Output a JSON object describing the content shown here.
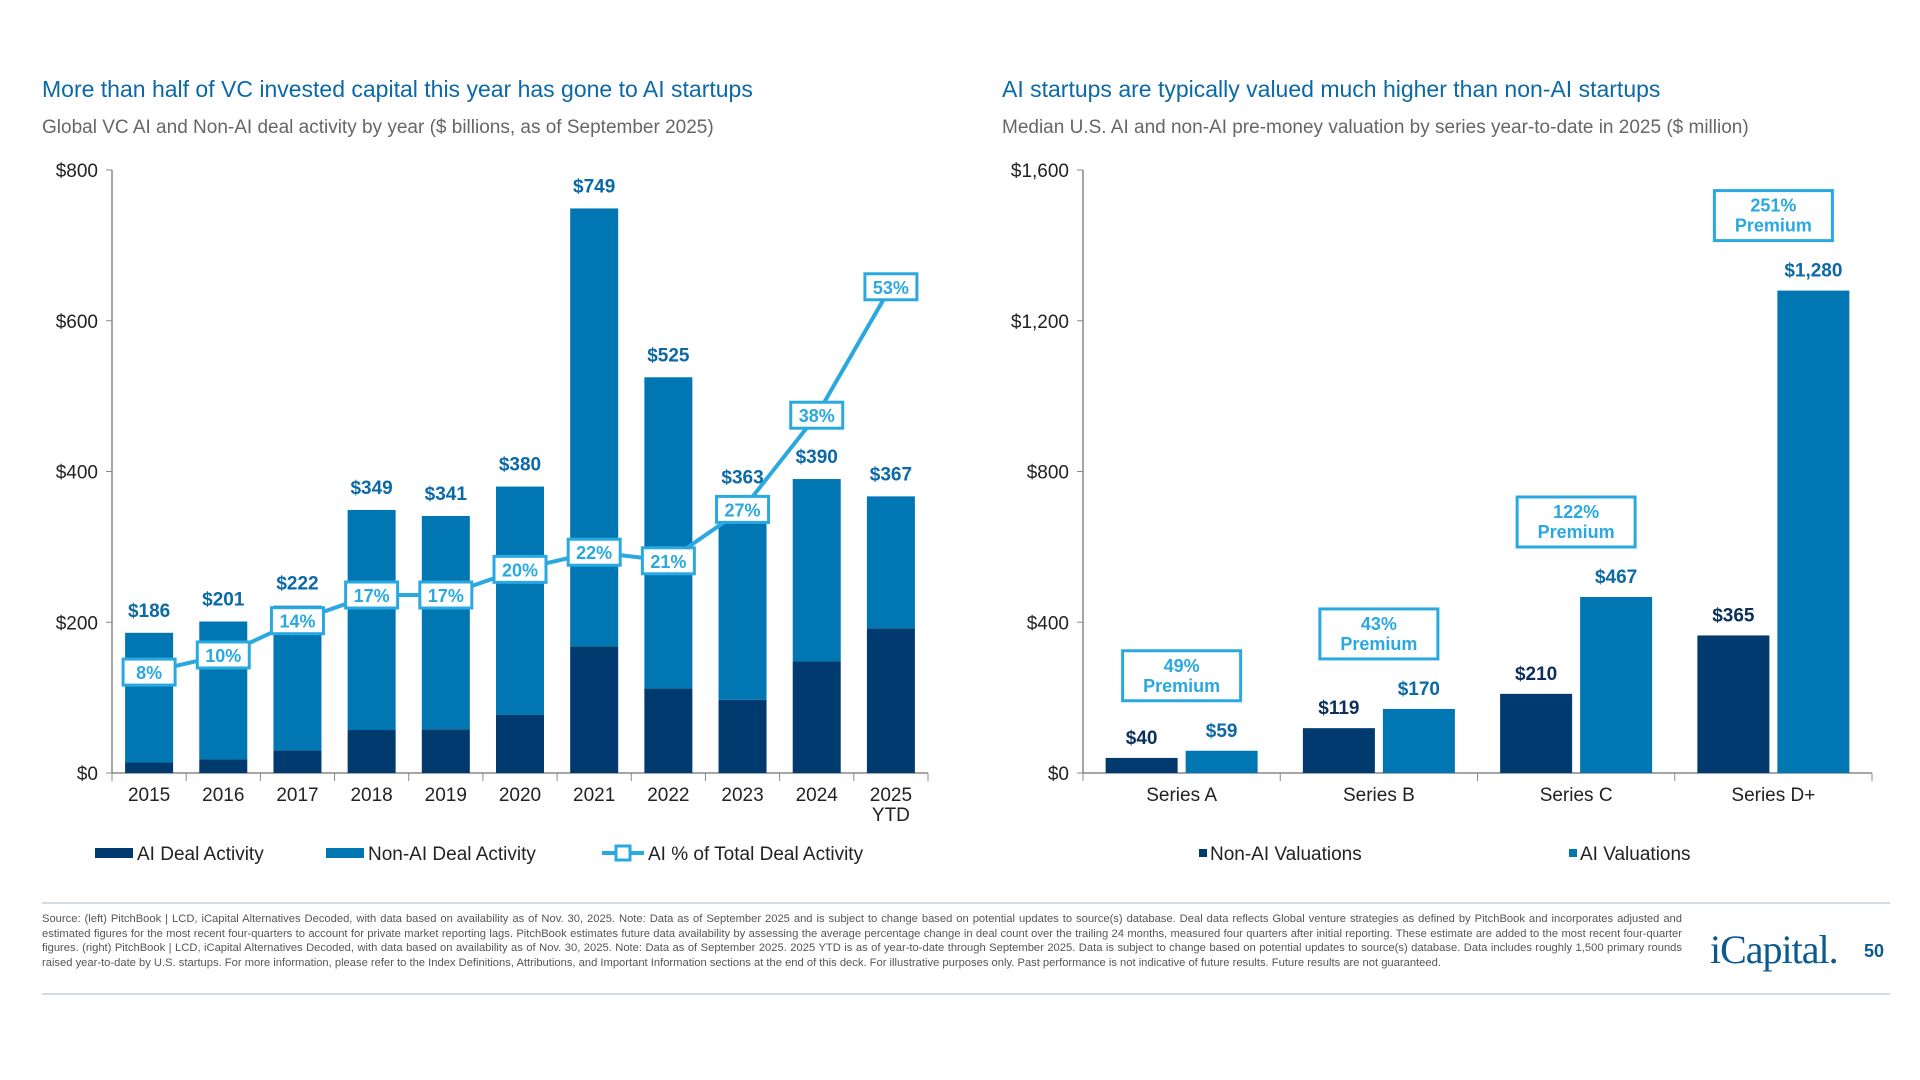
{
  "left": {
    "title": "More than half of VC invested capital this year has gone to AI startups",
    "subtitle": "Global VC AI and Non-AI deal activity by year ($ billions, as of September 2025)"
  },
  "right": {
    "title": "AI startups are typically valued much higher than non-AI startups",
    "subtitle": "Median U.S. AI and non-AI pre-money valuation by series year-to-date in 2025 ($ million)"
  },
  "chart_data": [
    {
      "type": "bar",
      "stacked": true,
      "categories": [
        "2015",
        "2016",
        "2017",
        "2018",
        "2019",
        "2020",
        "2021",
        "2022",
        "2023",
        "2024",
        "2025 YTD"
      ],
      "totals": [
        186,
        201,
        222,
        349,
        341,
        380,
        749,
        525,
        363,
        390,
        367
      ],
      "total_labels": [
        "$186",
        "$201",
        "$222",
        "$349",
        "$341",
        "$380",
        "$749",
        "$525",
        "$363",
        "$390",
        "$367"
      ],
      "series": [
        {
          "name": "AI Deal Activity",
          "values": [
            14,
            18,
            30,
            57,
            58,
            77,
            168,
            112,
            97,
            148,
            192
          ],
          "color": "#003a6e"
        },
        {
          "name": "Non-AI Deal Activity",
          "values": [
            172,
            183,
            192,
            292,
            283,
            303,
            581,
            413,
            266,
            242,
            175
          ],
          "color": "#0077b3"
        },
        {
          "name": "AI % of Total Deal Activity",
          "type": "line",
          "values": [
            8,
            10,
            14,
            17,
            17,
            20,
            22,
            21,
            27,
            38,
            53
          ],
          "labels": [
            "8%",
            "10%",
            "14%",
            "17%",
            "17%",
            "20%",
            "22%",
            "21%",
            "27%",
            "38%",
            "53%"
          ],
          "color": "#2aa8e0"
        }
      ],
      "ylim": [
        0,
        800
      ],
      "yticks": [
        "$0",
        "$200",
        "$400",
        "$600",
        "$800"
      ],
      "legend": "bottom"
    },
    {
      "type": "bar",
      "categories": [
        "Series A",
        "Series B",
        "Series C",
        "Series D+"
      ],
      "series": [
        {
          "name": "Non-AI Valuations",
          "values": [
            40,
            119,
            210,
            365
          ],
          "labels": [
            "$40",
            "$119",
            "$210",
            "$365"
          ],
          "color": "#003a6e"
        },
        {
          "name": "AI Valuations",
          "values": [
            59,
            170,
            467,
            1280
          ],
          "labels": [
            "$59",
            "$170",
            "$467",
            "$1,280"
          ],
          "color": "#0077b3"
        }
      ],
      "annotations": [
        [
          "49%",
          "Premium"
        ],
        [
          "43%",
          "Premium"
        ],
        [
          "122%",
          "Premium"
        ],
        [
          "251%",
          "Premium"
        ]
      ],
      "ylim": [
        0,
        1600
      ],
      "yticks": [
        "$0",
        "$400",
        "$800",
        "$1,200",
        "$1,600"
      ],
      "legend": "bottom"
    }
  ],
  "footnote": "Source: (left) PitchBook | LCD, iCapital Alternatives Decoded, with data based on availability as of Nov. 30, 2025. Note: Data as of September 2025 and is subject to change based on potential updates to source(s) database. Deal data reflects Global venture strategies as defined by PitchBook and incorporates adjusted and estimated figures for the most recent four-quarters to account for private market reporting lags. PitchBook estimates future data availability by assessing the average percentage change in deal count over the trailing 24 months, measured four quarters after initial reporting. These estimate are added to the most recent four-quarter figures. (right) PitchBook | LCD, iCapital Alternatives Decoded, with data based on availability as of Nov. 30, 2025. Note: Data as of September 2025. 2025 YTD is as of year-to-date through September 2025. Data is subject to change based on potential updates to source(s) database. Data includes roughly 1,500 primary rounds raised year-to-date by U.S. startups. For more information, please refer to the Index Definitions, Attributions, and Important Information sections at the end of this deck. For illustrative purposes only. Past performance is not indicative of future results. Future results are not guaranteed.",
  "logo": "iCapital.",
  "page_number": "50"
}
